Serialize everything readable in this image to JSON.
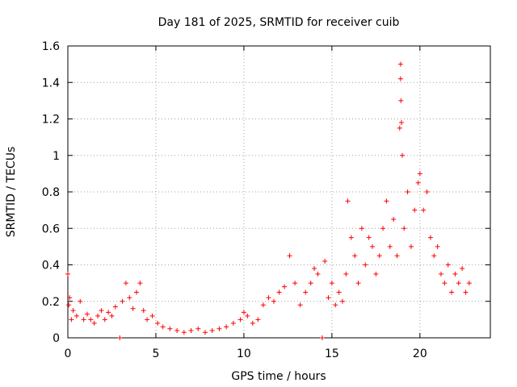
{
  "chart_data": {
    "type": "scatter",
    "title": "Day 181 of 2025, SRMTID for receiver cuib",
    "xlabel": "GPS time / hours",
    "ylabel": "SRMTID / TECUs",
    "xlim": [
      0,
      24
    ],
    "ylim": [
      0,
      1.6
    ],
    "x_ticks": [
      0,
      5,
      10,
      15,
      20
    ],
    "x_tick_labels": [
      "0",
      "5",
      "10",
      "15",
      "20"
    ],
    "y_ticks": [
      0,
      0.2,
      0.4,
      0.6,
      0.8,
      1,
      1.2,
      1.4,
      1.6
    ],
    "y_tick_labels": [
      "0",
      "0.2",
      "0.4",
      "0.6",
      "0.8",
      "1",
      "1.2",
      "1.4",
      "1.6"
    ],
    "grid": true,
    "marker": "plus",
    "color": "#ff0000",
    "series": [
      {
        "name": "SRMTID",
        "x": [
          0.0,
          0.05,
          0.1,
          0.2,
          0.3,
          0.5,
          0.7,
          0.9,
          1.1,
          1.3,
          1.5,
          1.7,
          1.9,
          2.1,
          2.3,
          2.5,
          2.7,
          2.95,
          3.1,
          3.3,
          3.5,
          3.7,
          3.9,
          4.1,
          4.3,
          4.5,
          4.8,
          5.1,
          5.4,
          5.8,
          6.2,
          6.6,
          7.0,
          7.4,
          7.8,
          8.2,
          8.6,
          9.0,
          9.4,
          9.8,
          10.0,
          10.2,
          10.5,
          10.8,
          11.1,
          11.4,
          11.7,
          12.0,
          12.3,
          12.6,
          12.9,
          13.2,
          13.5,
          13.8,
          14.0,
          14.2,
          14.45,
          14.6,
          14.8,
          15.0,
          15.2,
          15.4,
          15.6,
          15.8,
          15.9,
          16.1,
          16.3,
          16.5,
          16.7,
          16.9,
          17.1,
          17.3,
          17.5,
          17.7,
          17.9,
          18.1,
          18.3,
          18.5,
          18.7,
          18.85,
          18.9,
          18.9,
          18.92,
          18.95,
          19.0,
          19.1,
          19.3,
          19.5,
          19.7,
          19.9,
          20.0,
          20.2,
          20.4,
          20.6,
          20.8,
          21.0,
          21.2,
          21.4,
          21.6,
          21.8,
          22.0,
          22.2,
          22.4,
          22.6,
          22.8
        ],
        "y": [
          0.35,
          0.18,
          0.22,
          0.1,
          0.15,
          0.12,
          0.2,
          0.1,
          0.13,
          0.1,
          0.08,
          0.12,
          0.15,
          0.1,
          0.14,
          0.12,
          0.17,
          0.0,
          0.2,
          0.3,
          0.22,
          0.16,
          0.25,
          0.3,
          0.15,
          0.1,
          0.12,
          0.08,
          0.06,
          0.05,
          0.04,
          0.03,
          0.04,
          0.05,
          0.03,
          0.04,
          0.05,
          0.06,
          0.08,
          0.1,
          0.14,
          0.12,
          0.08,
          0.1,
          0.18,
          0.22,
          0.2,
          0.25,
          0.28,
          0.45,
          0.3,
          0.18,
          0.25,
          0.3,
          0.38,
          0.35,
          0.0,
          0.42,
          0.22,
          0.3,
          0.18,
          0.25,
          0.2,
          0.35,
          0.75,
          0.55,
          0.45,
          0.3,
          0.6,
          0.4,
          0.55,
          0.5,
          0.35,
          0.45,
          0.6,
          0.75,
          0.5,
          0.65,
          0.45,
          1.15,
          1.5,
          1.42,
          1.3,
          1.18,
          1.0,
          0.6,
          0.8,
          0.5,
          0.7,
          0.85,
          0.9,
          0.7,
          0.8,
          0.55,
          0.45,
          0.5,
          0.35,
          0.3,
          0.4,
          0.25,
          0.35,
          0.3,
          0.38,
          0.25,
          0.3
        ]
      }
    ]
  }
}
